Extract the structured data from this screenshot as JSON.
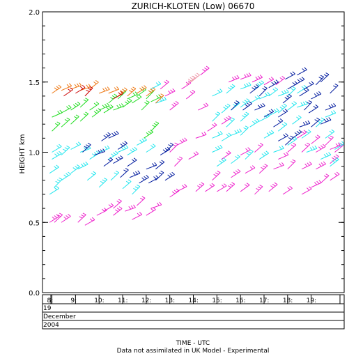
{
  "chart_data": {
    "type": "scatter",
    "subtype": "wind-profiler-barbs",
    "title": "ZURICH-KLOTEN (Low) 06670",
    "ylabel": "HEIGHT km",
    "xlabel": "TIME - UTC",
    "footnote": "Data not assimilated in UK Model - Experimental",
    "ylim": [
      0.0,
      2.0
    ],
    "yticks": [
      "0.0",
      "0.5",
      "1.0",
      "1.5",
      "2.0"
    ],
    "yticks_values": [
      0.0,
      0.5,
      1.0,
      1.5,
      2.0
    ],
    "xticks": [
      "8:",
      "9:",
      "10:",
      "11:",
      "12:",
      "13:",
      "14:",
      "15:",
      "16:",
      "17:",
      "18:",
      "19:"
    ],
    "xticks_hours": [
      8,
      9,
      10,
      11,
      12,
      13,
      14,
      15,
      16,
      17,
      18,
      19
    ],
    "xlim_hours": [
      7.6,
      20.4
    ],
    "date_rows": [
      "19",
      "December",
      "2004"
    ],
    "grid": false,
    "colors": {
      "magenta": "#ee22cc",
      "cyan": "#22e6ee",
      "navy": "#001a9e",
      "green": "#22dd22",
      "orange": "#ee7711",
      "red": "#cc0000",
      "pink": "#ee99aa"
    },
    "series": [
      {
        "values": [
          [
            7.9,
            0.5
          ],
          [
            8.1,
            0.5
          ],
          [
            8.4,
            0.5
          ],
          [
            9.1,
            0.5
          ],
          [
            9.4,
            0.48
          ],
          [
            10.6,
            0.55
          ],
          [
            11.4,
            0.52
          ],
          [
            12.0,
            0.55
          ],
          [
            9.9,
            0.55
          ],
          [
            10.2,
            0.58
          ],
          [
            10.6,
            0.6
          ],
          [
            11.1,
            0.58
          ],
          [
            11.6,
            0.62
          ],
          [
            12.2,
            0.6
          ],
          [
            13.0,
            0.68
          ],
          [
            13.3,
            0.72
          ],
          [
            14.1,
            0.72
          ],
          [
            14.5,
            0.72
          ],
          [
            15.0,
            0.72
          ],
          [
            15.4,
            0.72
          ],
          [
            16.0,
            0.72
          ],
          [
            16.6,
            0.7
          ],
          [
            17.2,
            0.72
          ],
          [
            17.8,
            0.7
          ],
          [
            18.6,
            0.7
          ],
          [
            19.0,
            0.75
          ],
          [
            19.4,
            0.78
          ],
          [
            19.8,
            0.8
          ],
          [
            13.0,
            1.0
          ],
          [
            13.3,
            1.05
          ],
          [
            14.1,
            1.1
          ],
          [
            14.6,
            1.15
          ],
          [
            15.2,
            1.2
          ],
          [
            13.5,
            1.45
          ],
          [
            13.7,
            1.38
          ],
          [
            14.2,
            1.3
          ],
          [
            14.3,
            1.55
          ],
          [
            15.5,
            1.5
          ],
          [
            16.0,
            1.52
          ],
          [
            16.5,
            1.5
          ],
          [
            17.0,
            1.48
          ],
          [
            17.5,
            1.48
          ],
          [
            12.6,
            1.45
          ],
          [
            12.8,
            1.4
          ],
          [
            13.0,
            1.3
          ],
          [
            13.2,
            0.9
          ],
          [
            13.8,
            0.95
          ],
          [
            14.8,
            0.8
          ],
          [
            15.6,
            0.82
          ],
          [
            16.2,
            0.85
          ],
          [
            16.8,
            0.85
          ],
          [
            17.4,
            0.88
          ],
          [
            18.0,
            0.88
          ],
          [
            18.6,
            0.88
          ],
          [
            19.2,
            0.88
          ],
          [
            19.8,
            0.92
          ],
          [
            18.0,
            1.0
          ],
          [
            18.6,
            1.0
          ],
          [
            19.2,
            1.0
          ],
          [
            19.8,
            1.02
          ],
          [
            18.4,
            1.1
          ],
          [
            19.0,
            1.06
          ],
          [
            19.6,
            1.05
          ],
          [
            20.0,
            1.0
          ],
          [
            17.6,
            0.95
          ],
          [
            16.6,
            1.0
          ],
          [
            16.0,
            0.98
          ],
          [
            15.2,
            0.95
          ]
        ]
      },
      {
        "values": [
          [
            7.9,
            0.7
          ],
          [
            8.1,
            0.75
          ],
          [
            8.4,
            0.8
          ],
          [
            8.8,
            0.85
          ],
          [
            9.1,
            0.88
          ],
          [
            9.5,
            0.8
          ],
          [
            10.0,
            0.75
          ],
          [
            10.5,
            0.8
          ],
          [
            11.0,
            0.74
          ],
          [
            11.4,
            0.7
          ],
          [
            7.9,
            0.85
          ],
          [
            8.0,
            0.95
          ],
          [
            8.0,
            1.0
          ],
          [
            8.4,
            0.98
          ],
          [
            8.8,
            1.02
          ],
          [
            9.2,
            1.0
          ],
          [
            9.6,
            0.95
          ],
          [
            10.0,
            1.0
          ],
          [
            10.4,
            0.95
          ],
          [
            10.8,
            1.0
          ],
          [
            11.2,
            0.98
          ],
          [
            11.6,
            1.05
          ],
          [
            12.0,
            1.0
          ],
          [
            12.4,
            1.35
          ],
          [
            12.2,
            1.45
          ],
          [
            14.8,
            1.0
          ],
          [
            15.2,
            1.08
          ],
          [
            15.6,
            1.12
          ],
          [
            16.0,
            1.12
          ],
          [
            16.4,
            1.18
          ],
          [
            16.8,
            1.22
          ],
          [
            17.2,
            1.26
          ],
          [
            17.6,
            1.28
          ],
          [
            18.0,
            1.3
          ],
          [
            18.4,
            1.32
          ],
          [
            14.8,
            1.22
          ],
          [
            15.2,
            1.28
          ],
          [
            15.6,
            1.3
          ],
          [
            16.0,
            1.32
          ],
          [
            16.4,
            1.35
          ],
          [
            16.8,
            1.38
          ],
          [
            17.2,
            1.4
          ],
          [
            17.6,
            1.4
          ],
          [
            18.0,
            1.4
          ],
          [
            18.4,
            1.42
          ],
          [
            15.0,
            0.9
          ],
          [
            15.6,
            0.92
          ],
          [
            16.2,
            0.95
          ],
          [
            16.8,
            0.95
          ],
          [
            17.4,
            1.0
          ],
          [
            18.0,
            1.05
          ],
          [
            18.6,
            1.1
          ],
          [
            19.2,
            1.18
          ],
          [
            19.6,
            1.25
          ],
          [
            20.0,
            1.02
          ],
          [
            19.6,
            1.1
          ],
          [
            14.8,
            1.4
          ],
          [
            15.4,
            1.42
          ],
          [
            16.0,
            1.45
          ],
          [
            16.6,
            1.45
          ],
          [
            14.8,
            1.1
          ],
          [
            15.4,
            1.18
          ],
          [
            16.0,
            1.22
          ],
          [
            17.0,
            1.1
          ],
          [
            17.6,
            1.15
          ],
          [
            18.2,
            1.2
          ],
          [
            18.8,
            1.0
          ],
          [
            19.4,
            0.95
          ],
          [
            19.8,
            0.9
          ]
        ]
      },
      {
        "values": [
          [
            9.3,
            1.0
          ],
          [
            9.8,
            0.98
          ],
          [
            10.2,
            0.9
          ],
          [
            10.6,
            0.92
          ],
          [
            10.9,
            0.82
          ],
          [
            11.3,
            0.82
          ],
          [
            11.7,
            0.78
          ],
          [
            12.1,
            0.78
          ],
          [
            12.4,
            0.8
          ],
          [
            10.1,
            1.08
          ],
          [
            10.4,
            1.1
          ],
          [
            10.8,
            1.02
          ],
          [
            11.2,
            0.9
          ],
          [
            12.0,
            0.88
          ],
          [
            12.4,
            0.88
          ],
          [
            15.6,
            1.3
          ],
          [
            16.1,
            1.3
          ],
          [
            16.6,
            1.3
          ],
          [
            17.0,
            1.25
          ],
          [
            17.4,
            1.18
          ],
          [
            17.6,
            1.25
          ],
          [
            17.8,
            1.35
          ],
          [
            18.0,
            1.45
          ],
          [
            18.3,
            1.48
          ],
          [
            18.5,
            1.4
          ],
          [
            18.7,
            1.3
          ],
          [
            18.9,
            1.28
          ],
          [
            17.6,
            1.08
          ],
          [
            17.9,
            1.05
          ],
          [
            18.2,
            1.1
          ],
          [
            18.5,
            1.18
          ],
          [
            19.0,
            1.18
          ],
          [
            19.4,
            1.2
          ],
          [
            19.6,
            1.3
          ],
          [
            17.2,
            1.46
          ],
          [
            16.8,
            1.4
          ],
          [
            17.9,
            1.52
          ],
          [
            18.4,
            1.55
          ],
          [
            16.4,
            1.42
          ],
          [
            18.7,
            1.45
          ],
          [
            19.0,
            1.38
          ],
          [
            19.2,
            1.48
          ],
          [
            19.4,
            1.5
          ],
          [
            19.8,
            1.42
          ],
          [
            12.8,
            0.8
          ],
          [
            12.6,
            0.98
          ],
          [
            12.8,
            1.0
          ]
        ]
      },
      {
        "values": [
          [
            8.0,
            1.15
          ],
          [
            8.4,
            1.18
          ],
          [
            8.8,
            1.2
          ],
          [
            9.2,
            1.22
          ],
          [
            9.7,
            1.25
          ],
          [
            10.2,
            1.28
          ],
          [
            10.6,
            1.3
          ],
          [
            11.0,
            1.32
          ],
          [
            11.4,
            1.35
          ],
          [
            8.0,
            1.25
          ],
          [
            8.4,
            1.28
          ],
          [
            8.8,
            1.3
          ],
          [
            9.2,
            1.32
          ],
          [
            9.6,
            1.3
          ],
          [
            10.0,
            1.3
          ],
          [
            10.4,
            1.35
          ],
          [
            10.8,
            1.38
          ],
          [
            11.2,
            1.38
          ],
          [
            11.6,
            1.4
          ],
          [
            12.0,
            1.38
          ],
          [
            12.2,
            1.36
          ],
          [
            11.8,
            1.3
          ],
          [
            11.9,
            1.1
          ],
          [
            12.2,
            1.15
          ]
        ]
      },
      {
        "values": [
          [
            8.0,
            1.42
          ],
          [
            8.4,
            1.44
          ],
          [
            8.8,
            1.45
          ],
          [
            9.2,
            1.44
          ],
          [
            9.6,
            1.45
          ],
          [
            10.0,
            1.42
          ],
          [
            10.4,
            1.42
          ],
          [
            10.8,
            1.4
          ],
          [
            11.2,
            1.4
          ],
          [
            11.6,
            1.42
          ],
          [
            12.0,
            1.4
          ],
          [
            12.4,
            1.35
          ]
        ]
      },
      {
        "values": [
          [
            8.5,
            1.4
          ],
          [
            9.0,
            1.42
          ],
          [
            9.4,
            1.4
          ],
          [
            10.6,
            1.38
          ]
        ]
      },
      {
        "values": [
          [
            13.7,
            1.48
          ],
          [
            13.9,
            1.5
          ]
        ]
      }
    ]
  }
}
